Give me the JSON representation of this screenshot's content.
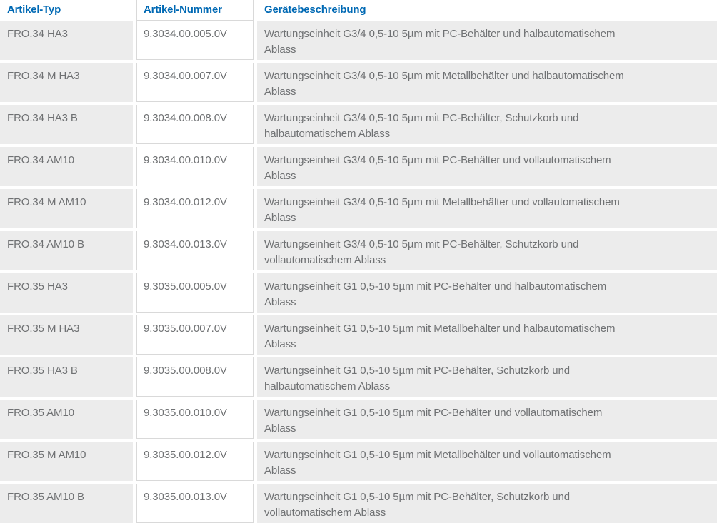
{
  "colors": {
    "header_text_blue": "#0069b4",
    "cell_background_gray": "#ececec",
    "cell_text_gray": "#6f7173",
    "separator_line": "#d9d9d9"
  },
  "table": {
    "columns": [
      {
        "key": "type",
        "label": "Artikel-Typ"
      },
      {
        "key": "number",
        "label": "Artikel-Nummer"
      },
      {
        "key": "description",
        "label": "Gerätebeschreibung"
      }
    ],
    "rows": [
      {
        "type": "FRO.34 HA3",
        "number": "9.3034.00.005.0V",
        "description": "Wartungseinheit G3/4 0,5-10 5µm mit PC-Behälter und halbautomatischem\nAblass"
      },
      {
        "type": "FRO.34 M HA3",
        "number": "9.3034.00.007.0V",
        "description": "Wartungseinheit G3/4 0,5-10 5µm mit Metallbehälter und halbautomatischem\nAblass"
      },
      {
        "type": "FRO.34 HA3 B",
        "number": "9.3034.00.008.0V",
        "description": "Wartungseinheit G3/4 0,5-10 5µm mit PC-Behälter, Schutzkorb und\nhalbautomatischem Ablass"
      },
      {
        "type": "FRO.34 AM10",
        "number": "9.3034.00.010.0V",
        "description": "Wartungseinheit G3/4 0,5-10 5µm mit PC-Behälter und vollautomatischem\nAblass"
      },
      {
        "type": "FRO.34 M AM10",
        "number": "9.3034.00.012.0V",
        "description": "Wartungseinheit G3/4 0,5-10 5µm mit Metallbehälter und vollautomatischem\nAblass"
      },
      {
        "type": "FRO.34 AM10 B",
        "number": "9.3034.00.013.0V",
        "description": "Wartungseinheit G3/4 0,5-10 5µm mit PC-Behälter, Schutzkorb und\nvollautomatischem Ablass"
      },
      {
        "type": "FRO.35 HA3",
        "number": "9.3035.00.005.0V",
        "description": "Wartungseinheit G1 0,5-10 5µm mit PC-Behälter und halbautomatischem\nAblass"
      },
      {
        "type": "FRO.35 M HA3",
        "number": "9.3035.00.007.0V",
        "description": "Wartungseinheit G1 0,5-10 5µm mit Metallbehälter und halbautomatischem\nAblass"
      },
      {
        "type": "FRO.35 HA3 B",
        "number": "9.3035.00.008.0V",
        "description": "Wartungseinheit G1 0,5-10 5µm mit PC-Behälter, Schutzkorb und\nhalbautomatischem Ablass"
      },
      {
        "type": "FRO.35 AM10",
        "number": "9.3035.00.010.0V",
        "description": "Wartungseinheit G1 0,5-10 5µm mit PC-Behälter und vollautomatischem\nAblass"
      },
      {
        "type": "FRO.35 M AM10",
        "number": "9.3035.00.012.0V",
        "description": "Wartungseinheit G1 0,5-10 5µm mit Metallbehälter und vollautomatischem\nAblass"
      },
      {
        "type": "FRO.35 AM10 B",
        "number": "9.3035.00.013.0V",
        "description": "Wartungseinheit G1 0,5-10 5µm mit PC-Behälter, Schutzkorb und\nvollautomatischem Ablass"
      }
    ]
  }
}
